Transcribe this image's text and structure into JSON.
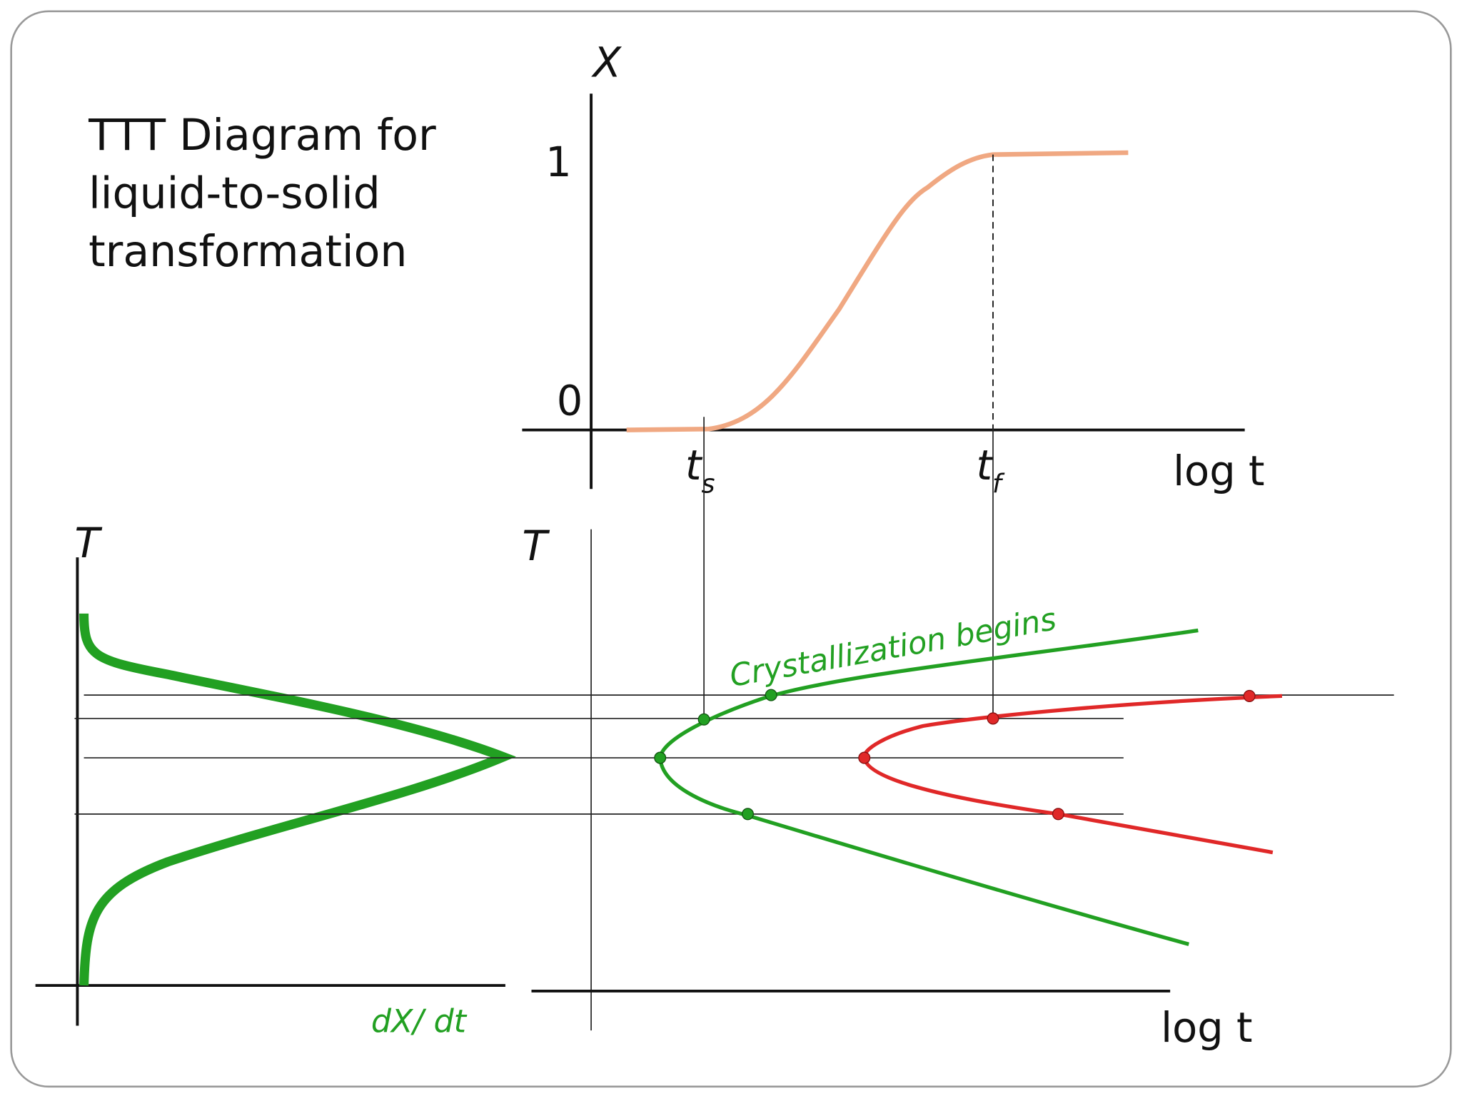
{
  "title": {
    "lines": [
      "TTT Diagram for",
      "liquid-to-solid",
      "transformation"
    ]
  },
  "top_plot": {
    "y_axis_label": "X",
    "y_tick_one": "1",
    "y_tick_zero": "0",
    "start_time": {
      "base": "t",
      "subscript": "s"
    },
    "finish_time": {
      "base": "t",
      "subscript": "f"
    },
    "x_axis_label": "log t"
  },
  "rate_plot": {
    "y_axis_label": "T",
    "x_axis_label": "dX/ dt"
  },
  "ttt_plot": {
    "y_axis_label": "T",
    "x_axis_label": "log t",
    "curve_label": "Crystallization begins"
  }
}
